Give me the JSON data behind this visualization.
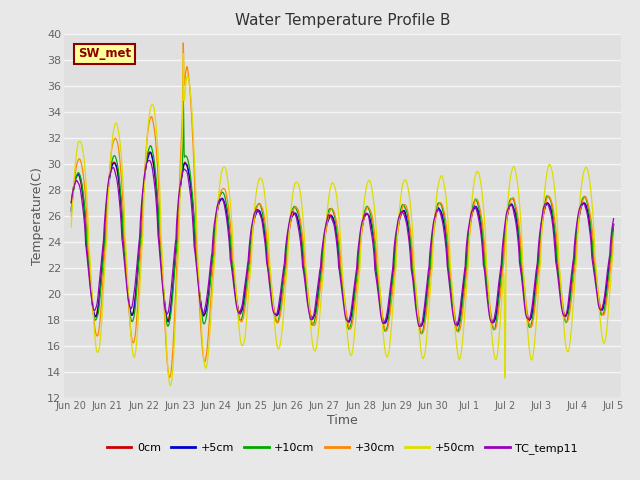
{
  "title": "Water Temperature Profile B",
  "xlabel": "Time",
  "ylabel": "Temperature(C)",
  "ylim": [
    12,
    40
  ],
  "yticks": [
    12,
    14,
    16,
    18,
    20,
    22,
    24,
    26,
    28,
    30,
    32,
    34,
    36,
    38,
    40
  ],
  "bg_color": "#e8e8e8",
  "plot_bg": "#e0e0e0",
  "grid_color": "#f5f5f5",
  "annotation_text": "SW_met",
  "annotation_fg": "#8B0000",
  "annotation_bg": "#ffff99",
  "annotation_edge": "#8B0000",
  "tick_labels": [
    "Jun 20",
    "Jun 21",
    "Jun 22",
    "Jun 23",
    "Jun 24",
    "Jun 25",
    "Jun 26",
    "Jun 27",
    "Jun 28",
    "Jun 29",
    "Jun 30",
    "Jul 1",
    "Jul 2",
    "Jul 3",
    "Jul 4",
    "Jul 5"
  ],
  "series": [
    {
      "label": "0cm",
      "color": "#cc0000"
    },
    {
      "label": "+5cm",
      "color": "#0000cc"
    },
    {
      "label": "+10cm",
      "color": "#00aa00"
    },
    {
      "label": "+30cm",
      "color": "#ff8800"
    },
    {
      "label": "+50cm",
      "color": "#dddd00"
    },
    {
      "label": "TC_temp11",
      "color": "#9900bb"
    }
  ]
}
